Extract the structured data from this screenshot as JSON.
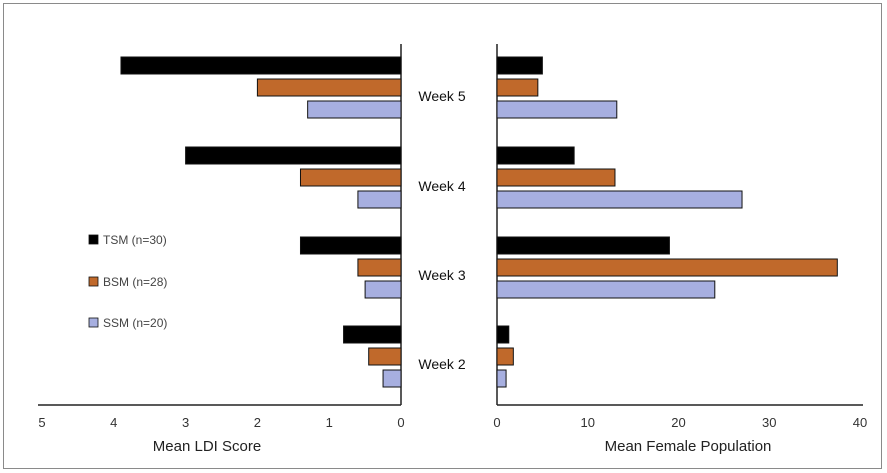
{
  "chart_data": [
    {
      "type": "bar",
      "orientation": "horizontal",
      "direction": "reversed",
      "categories": [
        "Week 5",
        "Week 4",
        "Week 3",
        "Week 2"
      ],
      "xlabel": "Mean LDI Score",
      "xlim": [
        0,
        5
      ],
      "ticks": [
        "5",
        "4",
        "3",
        "2",
        "1",
        "0"
      ],
      "series": [
        {
          "name": "TSM (n=30)",
          "color": "#000000",
          "values": [
            3.9,
            3.0,
            1.4,
            0.8
          ]
        },
        {
          "name": "BSM (n=28)",
          "color": "#c0692b",
          "values": [
            2.0,
            1.4,
            0.6,
            0.45
          ]
        },
        {
          "name": "SSM (n=20)",
          "color": "#a7afe0",
          "values": [
            1.3,
            0.6,
            0.5,
            0.25
          ]
        }
      ]
    },
    {
      "type": "bar",
      "orientation": "horizontal",
      "categories": [
        "Week 5",
        "Week 4",
        "Week 3",
        "Week 2"
      ],
      "xlabel": "Mean Female Population",
      "xlim": [
        0,
        40
      ],
      "ticks": [
        "0",
        "10",
        "20",
        "30",
        "40"
      ],
      "series": [
        {
          "name": "TSM (n=30)",
          "color": "#000000",
          "values": [
            5.0,
            8.5,
            19.0,
            1.3
          ]
        },
        {
          "name": "BSM (n=28)",
          "color": "#c0692b",
          "values": [
            4.5,
            13.0,
            37.5,
            1.8
          ]
        },
        {
          "name": "SSM (n=20)",
          "color": "#a7afe0",
          "values": [
            13.2,
            27.0,
            24.0,
            1.0
          ]
        }
      ]
    }
  ],
  "legend": {
    "position": "left",
    "items": [
      {
        "label": "TSM (n=30)",
        "color": "#000000"
      },
      {
        "label": "BSM (n=28)",
        "color": "#c0692b"
      },
      {
        "label": "SSM (n=20)",
        "color": "#a7afe0"
      }
    ]
  }
}
